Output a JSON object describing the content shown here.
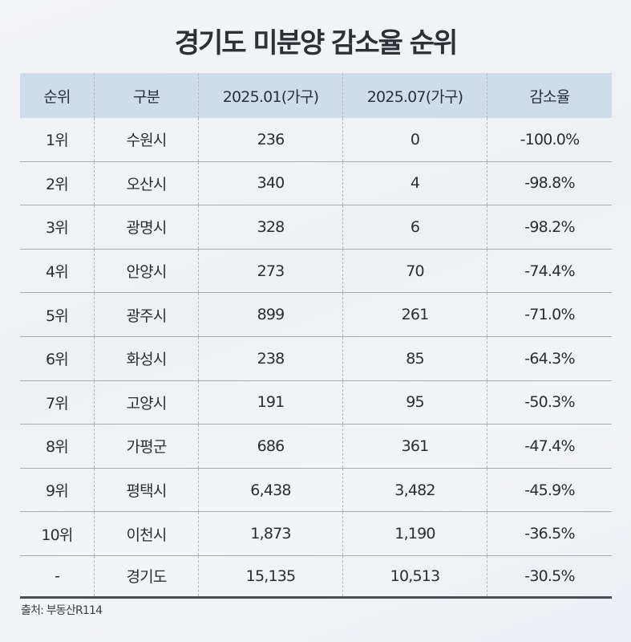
{
  "title": "경기도 미분양 감소율 순위",
  "table": {
    "headers": [
      "순위",
      "구분",
      "2025.01(가구)",
      "2025.07(가구)",
      "감소율"
    ],
    "rows": [
      [
        "1위",
        "수원시",
        "236",
        "0",
        "-100.0%"
      ],
      [
        "2위",
        "오산시",
        "340",
        "4",
        "-98.8%"
      ],
      [
        "3위",
        "광명시",
        "328",
        "6",
        "-98.2%"
      ],
      [
        "4위",
        "안양시",
        "273",
        "70",
        "-74.4%"
      ],
      [
        "5위",
        "광주시",
        "899",
        "261",
        "-71.0%"
      ],
      [
        "6위",
        "화성시",
        "238",
        "85",
        "-64.3%"
      ],
      [
        "7위",
        "고양시",
        "191",
        "95",
        "-50.3%"
      ],
      [
        "8위",
        "가평군",
        "686",
        "361",
        "-47.4%"
      ],
      [
        "9위",
        "평택시",
        "6,438",
        "3,482",
        "-45.9%"
      ],
      [
        "10위",
        "이천시",
        "1,873",
        "1,190",
        "-36.5%"
      ],
      [
        "-",
        "경기도",
        "15,135",
        "10,513",
        "-30.5%"
      ]
    ]
  },
  "source": "출처: 부동산R114",
  "colors": {
    "header_bg": "#cfdcea",
    "text": "#2b2d33",
    "bottom_rule": "#4a4c52"
  }
}
